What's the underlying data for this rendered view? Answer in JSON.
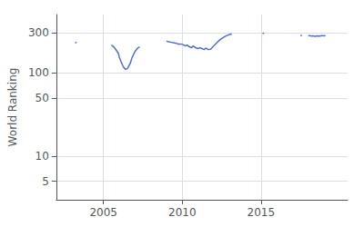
{
  "chart_data": {
    "type": "line",
    "ylabel": "World Ranking",
    "x": [
      2003.2,
      2003.3,
      null,
      2005.5,
      2005.65,
      2005.8,
      2005.95,
      2006.0,
      2006.1,
      2006.2,
      2006.3,
      2006.4,
      2006.5,
      2006.55,
      2006.6,
      2006.7,
      2006.8,
      2006.9,
      2007.0,
      2007.1,
      2007.2,
      2007.3,
      null,
      2009.0,
      2009.15,
      2009.3,
      2009.5,
      2009.65,
      2009.8,
      2009.9,
      2010.05,
      2010.2,
      2010.3,
      2010.45,
      2010.6,
      2010.7,
      2010.85,
      2011.0,
      2011.1,
      2011.25,
      2011.4,
      2011.5,
      2011.65,
      2011.8,
      2012.0,
      2012.2,
      2012.4,
      2012.6,
      2012.8,
      2013.0,
      2013.15,
      null,
      2015.1,
      2015.2,
      null,
      2017.5,
      2017.6,
      null,
      2018.0,
      2018.1,
      2018.2,
      2018.3,
      2018.4,
      2018.5,
      2018.6,
      2018.7,
      2018.8,
      2018.9,
      2019.0,
      2019.1
    ],
    "values": [
      228,
      232,
      null,
      215,
      205,
      188,
      170,
      155,
      138,
      125,
      115,
      110,
      112,
      115,
      120,
      130,
      150,
      165,
      180,
      190,
      200,
      205,
      null,
      240,
      235,
      232,
      228,
      225,
      220,
      222,
      218,
      210,
      215,
      205,
      200,
      210,
      200,
      195,
      200,
      195,
      190,
      198,
      190,
      192,
      210,
      230,
      250,
      265,
      278,
      288,
      292,
      null,
      295,
      300,
      null,
      278,
      282,
      null,
      278,
      280,
      275,
      278,
      274,
      276,
      278,
      275,
      278,
      280,
      278,
      280
    ],
    "xlim": [
      2002.0,
      2020.5
    ],
    "xticks": [
      2005,
      2010,
      2015
    ],
    "ylim": [
      3,
      500
    ],
    "yticks": [
      5,
      10,
      50,
      100,
      300
    ],
    "log": "y",
    "grid": true
  }
}
